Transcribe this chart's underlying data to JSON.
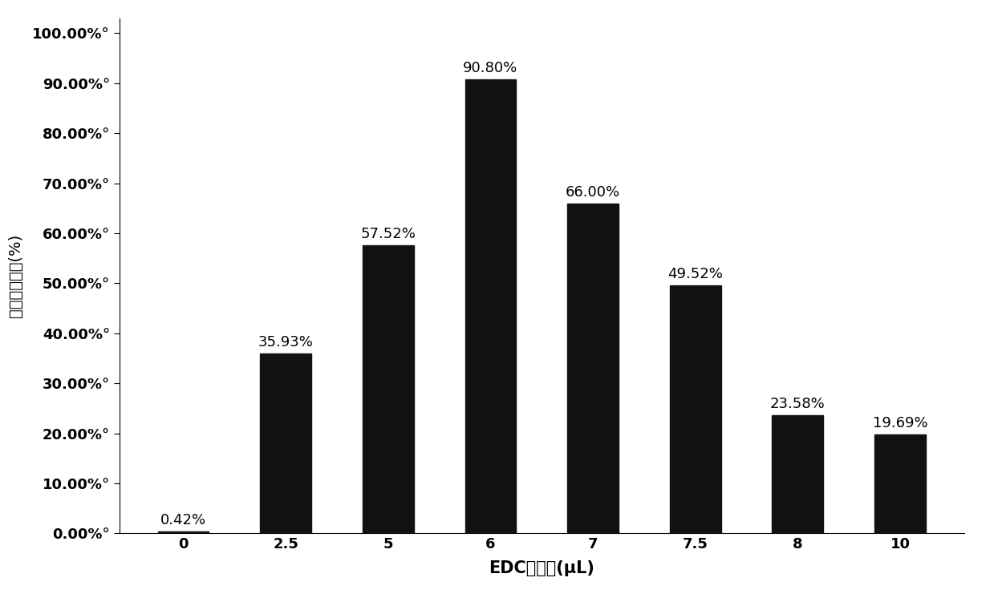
{
  "categories": [
    "0",
    "2.5",
    "5",
    "6",
    "7",
    "7.5",
    "8",
    "10"
  ],
  "values": [
    0.42,
    35.93,
    57.52,
    90.8,
    66.0,
    49.52,
    23.58,
    19.69
  ],
  "labels": [
    "0.42%",
    "35.93%",
    "57.52%",
    "90.80%",
    "66.00%",
    "49.52%",
    "23.58%",
    "19.69%"
  ],
  "bar_color": "#111111",
  "xlabel": "EDC添加量(μL)",
  "ylabel": "拓体偶联效率(%)",
  "ylim": [
    0,
    100
  ],
  "yticks": [
    0,
    10,
    20,
    30,
    40,
    50,
    60,
    70,
    80,
    90,
    100
  ],
  "ytick_labels": [
    "0.00%°",
    "10.00%°",
    "20.00%°",
    "30.00%°",
    "40.00%°",
    "50.00%°",
    "60.00%°",
    "70.00%°",
    "80.00%°",
    "90.00%°",
    "100.00%°"
  ],
  "bar_width": 0.5,
  "label_fontsize": 13,
  "axis_label_fontsize": 14,
  "tick_fontsize": 13,
  "background_color": "#ffffff"
}
